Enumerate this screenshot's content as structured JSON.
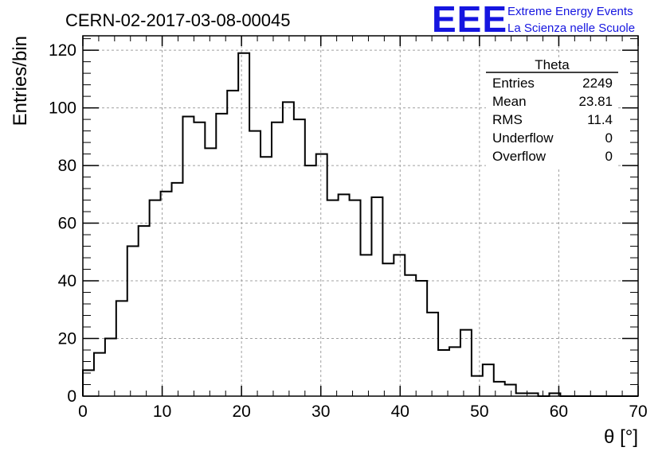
{
  "chart_data": {
    "type": "bar",
    "title": "CERN-02-2017-03-08-00045",
    "xlabel": "θ [°]",
    "ylabel": "Entries/bin",
    "xlim": [
      0,
      70
    ],
    "ylim": [
      0,
      125
    ],
    "grid": true,
    "x_ticks": [
      0,
      10,
      20,
      30,
      40,
      50,
      60,
      70
    ],
    "y_ticks": [
      0,
      20,
      40,
      60,
      80,
      100,
      120
    ],
    "bin_edges_start": 0,
    "bin_width": 1.4,
    "values": [
      9,
      15,
      20,
      33,
      52,
      59,
      68,
      71,
      74,
      97,
      95,
      86,
      98,
      106,
      119,
      92,
      83,
      95,
      102,
      96,
      80,
      84,
      68,
      70,
      68,
      49,
      69,
      46,
      49,
      42,
      40,
      29,
      16,
      17,
      23,
      7,
      11,
      5,
      4,
      1,
      1,
      0,
      1,
      0,
      0,
      0,
      0,
      0,
      0,
      0
    ],
    "stats_box": {
      "title": "Theta",
      "rows": [
        {
          "label": "Entries",
          "value": "2249"
        },
        {
          "label": "Mean",
          "value": "23.81"
        },
        {
          "label": "RMS",
          "value": "11.4"
        },
        {
          "label": "Underflow",
          "value": "0"
        },
        {
          "label": "Overflow",
          "value": "0"
        }
      ]
    }
  },
  "logo": {
    "big": "EEE",
    "line1": "Extreme Energy Events",
    "line2": "La Scienza nelle Scuole"
  },
  "colors": {
    "histogram": "#000000",
    "grid": "#a0a0a0",
    "logo": "#1515e0"
  }
}
